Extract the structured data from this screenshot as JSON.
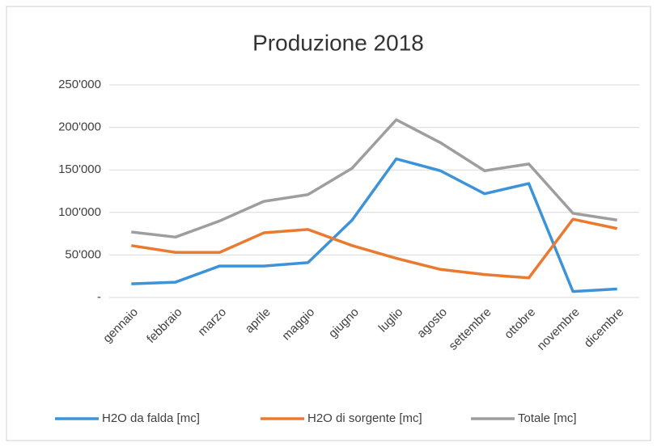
{
  "chart_data": {
    "type": "line",
    "title": "Produzione 2018",
    "categories": [
      "gennaio",
      "febbraio",
      "marzo",
      "aprile",
      "maggio",
      "giugno",
      "luglio",
      "agosto",
      "settembre",
      "ottobre",
      "novembre",
      "dicembre"
    ],
    "series": [
      {
        "name": "H2O da falda [mc]",
        "color": "#3d93d8",
        "values": [
          16000,
          18000,
          37000,
          37000,
          41000,
          91000,
          163000,
          149000,
          122000,
          134000,
          7000,
          10000
        ]
      },
      {
        "name": "H2O di sorgente [mc]",
        "color": "#e97a30",
        "values": [
          61000,
          53000,
          53000,
          76000,
          80000,
          61000,
          46000,
          33000,
          27000,
          23000,
          92000,
          81000
        ]
      },
      {
        "name": "Totale [mc]",
        "color": "#9e9e9e",
        "values": [
          77000,
          71000,
          90000,
          113000,
          121000,
          152000,
          209000,
          182000,
          149000,
          157000,
          99000,
          91000
        ]
      }
    ],
    "ylim": [
      0,
      250000
    ],
    "yticks": [
      {
        "value": 0,
        "label": "-"
      },
      {
        "value": 50000,
        "label": "50'000"
      },
      {
        "value": 100000,
        "label": "100'000"
      },
      {
        "value": 150000,
        "label": "150'000"
      },
      {
        "value": 200000,
        "label": "200'000"
      },
      {
        "value": 250000,
        "label": "250'000"
      }
    ],
    "grid": true,
    "legend": "bottom"
  }
}
